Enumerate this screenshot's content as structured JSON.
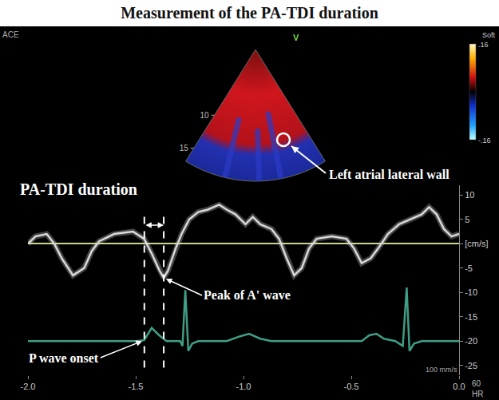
{
  "chart_data": {
    "type": "line",
    "title": "Measurement of the PA-TDI duration",
    "series": [
      {
        "color": "#d9d9d9",
        "x": [
          -2.0,
          -1.965,
          -1.913,
          -1.878,
          -1.843,
          -1.791,
          -1.739,
          -1.704,
          -1.67,
          -1.6,
          -1.513,
          -1.461,
          -1.426,
          -1.39,
          -1.37,
          -1.35,
          -1.315,
          -1.287,
          -1.252,
          -1.21,
          -1.165,
          -1.113,
          -1.078,
          -1.037,
          -0.991,
          -0.957,
          -0.922,
          -0.87,
          -0.835,
          -0.8,
          -0.765,
          -0.73,
          -0.696,
          -0.661,
          -0.591,
          -0.522,
          -0.487,
          -0.452,
          -0.41,
          -0.376,
          -0.33,
          -0.278,
          -0.226,
          -0.174,
          -0.139,
          -0.104,
          -0.07,
          -0.035,
          0.0
        ],
        "values": [
          0,
          1.5,
          2,
          0,
          -3,
          -6.5,
          -5,
          -1.5,
          0.5,
          2,
          2.5,
          1,
          -2,
          -5.5,
          -7,
          -5.5,
          -1,
          2,
          5,
          6.5,
          7,
          8,
          7,
          6,
          4,
          5.5,
          4,
          3,
          1,
          -3,
          -6.5,
          -5,
          -1,
          1,
          1.5,
          1,
          -1,
          -4,
          -3,
          -1,
          2,
          4,
          5,
          6,
          7.5,
          6,
          3,
          1.5,
          2
        ]
      },
      {
        "color": "#3f9e86",
        "x": [
          -2.0,
          -1.496,
          -1.461,
          -1.426,
          -1.391,
          -1.357,
          -1.294,
          -1.283,
          -1.27,
          -1.256,
          -1.238,
          -1.21,
          -1.078,
          -1.016,
          -0.974,
          -0.922,
          -0.87,
          -0.452,
          -0.417,
          -0.383,
          -0.348,
          -0.296,
          -0.261,
          -0.243,
          -0.23,
          -0.209,
          -0.174,
          0.0
        ],
        "values": [
          -20,
          -20,
          -19.8,
          -17.3,
          -18.8,
          -20,
          -20,
          -21,
          -9.5,
          -22,
          -20.5,
          -20,
          -20,
          -19,
          -18.5,
          -19.5,
          -20,
          -20,
          -18.8,
          -18.5,
          -19.5,
          -20,
          -21,
          -9,
          -22,
          -20.5,
          -20,
          -20
        ]
      }
    ],
    "xlim": [
      -2.0,
      0.0
    ],
    "xticks": [
      {
        "value": -2.0,
        "label": "-2.0"
      },
      {
        "value": -1.5,
        "label": "-1.5"
      },
      {
        "value": -1.0,
        "label": "-1.0"
      },
      {
        "value": -0.5,
        "label": "-0.5"
      },
      {
        "value": 0,
        "label": "0.0"
      }
    ],
    "ylim": [
      -27,
      12
    ],
    "yticks": [
      10,
      5,
      {
        "value": 0,
        "label": "[cm/s]"
      },
      -5,
      -10,
      -15,
      -20,
      -25
    ],
    "grid": false,
    "annotations": [
      {
        "text": "PA-TDI duration"
      },
      {
        "text": "P wave onset",
        "x": -1.46
      },
      {
        "text": "Peak of A' wave",
        "x": -1.37
      }
    ],
    "echo_image": {
      "label": "ACE",
      "mode": "V",
      "depth_range": [
        0,
        17
      ],
      "depth_ticks": [
        10,
        15
      ],
      "annotation": "Left atrial lateral wall"
    },
    "color_scale": {
      "title": "Soft",
      "range": [
        -0.16,
        0.16
      ],
      "ticks": [
        {
          "value": 0.16,
          "label": ".16"
        },
        {
          "value": -0.16,
          "label": "-.16"
        }
      ]
    },
    "sweep_speed": "100 mm/s",
    "heart_rate": {
      "value": 60,
      "label": "HR"
    }
  }
}
